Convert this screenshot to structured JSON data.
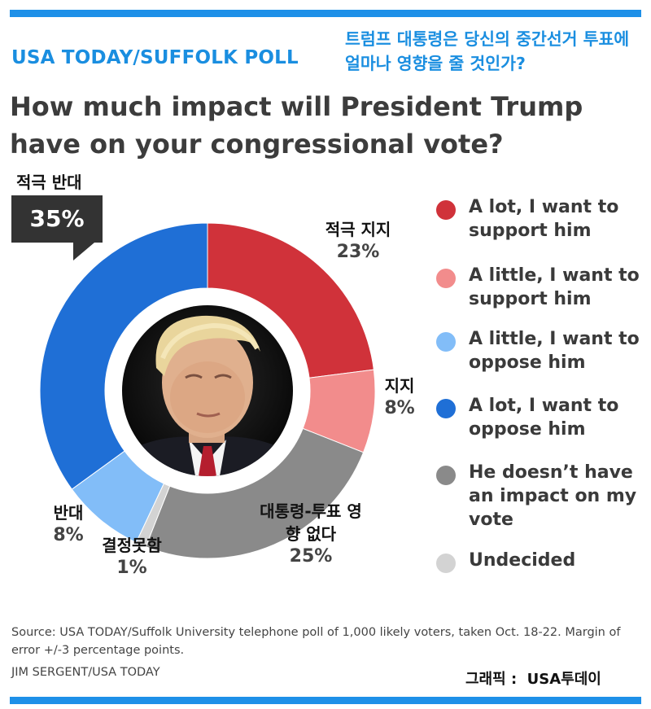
{
  "poll_name": "USA TODAY/SUFFOLK POLL",
  "korean_title": "트럼프 대통령은 당신의 중간선거 투표에 얼마나 영향을 줄 것인가?",
  "title": "How much impact will President Trump have on your congressional vote?",
  "chart_data": {
    "type": "pie",
    "variant": "donut",
    "center_image": "photo-of-president-trump",
    "start_angle_deg": 0,
    "direction": "clockwise",
    "slices": [
      {
        "name": "A lot, I want to support him",
        "korean_label": "적극 지지",
        "value": 23,
        "label": "23%",
        "color": "#d0323a"
      },
      {
        "name": "A little, I want to support him",
        "korean_label": "지지",
        "value": 8,
        "label": "8%",
        "color": "#f28c8c"
      },
      {
        "name": "He doesn’t have an impact on my vote",
        "korean_label": "대통령-투표 영향 없다",
        "value": 25,
        "label": "25%",
        "color": "#8a8a8a"
      },
      {
        "name": "Undecided",
        "korean_label": "결정못함",
        "value": 1,
        "label": "1%",
        "color": "#d3d3d3"
      },
      {
        "name": "A little, I want to oppose him",
        "korean_label": "반대",
        "value": 8,
        "label": "8%",
        "color": "#82bdf8"
      },
      {
        "name": "A lot, I want to oppose him",
        "korean_label": "적극 반대",
        "value": 35,
        "label": "35%",
        "color": "#1f6fd6"
      }
    ],
    "legend": {
      "placement": "right",
      "entries": [
        {
          "text": "A lot, I want to support him",
          "color": "#d0323a"
        },
        {
          "text": "A little, I want to support him",
          "color": "#f28c8c"
        },
        {
          "text": "A little, I want to oppose him",
          "color": "#82bdf8"
        },
        {
          "text": "A lot, I want to oppose him",
          "color": "#1f6fd6"
        },
        {
          "text": "He doesn’t have an impact on my vote",
          "color": "#8a8a8a"
        },
        {
          "text": "Undecided",
          "color": "#d3d3d3"
        }
      ]
    }
  },
  "source": "Source: USA TODAY/Suffolk University telephone poll of 1,000 likely voters, taken Oct. 18-22. Margin of error +/-3 percentage points.",
  "credit": "JIM SERGENT/USA TODAY",
  "graphic_credit": "그래픽 :  USA투데이",
  "accent_color": "#1e90e8"
}
